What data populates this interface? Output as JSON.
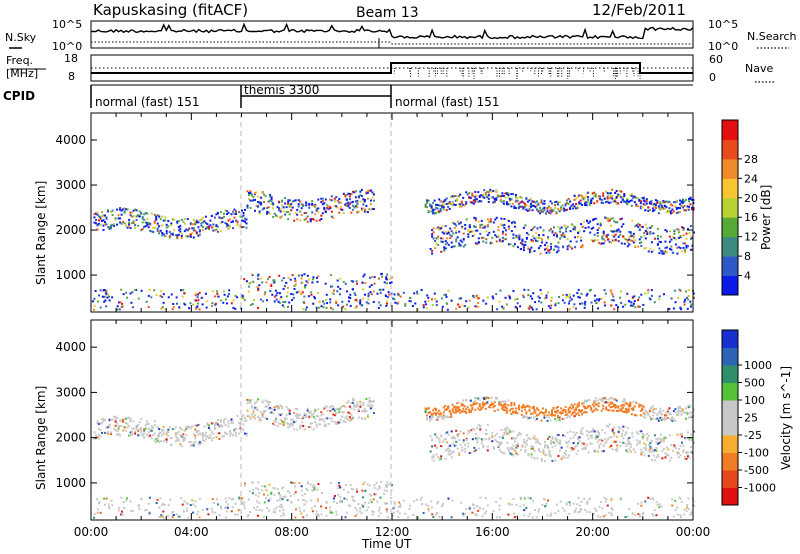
{
  "header": {
    "station": "Kapuskasing (fitACF)",
    "beam": "Beam 13",
    "date": "12/Feb/2011"
  },
  "noise_panel": {
    "left_label": "N.Sky",
    "right_label": "N.Search",
    "left_ticks": [
      "10^5",
      "10^0"
    ],
    "right_ticks": [
      "10^5",
      "10^0"
    ]
  },
  "freq_panel": {
    "left_label_line1": "Freq.",
    "left_label_line2": "[MHz]",
    "left_ticks": [
      "18",
      "8"
    ],
    "right_label": "Nave",
    "right_ticks": [
      "60",
      "0"
    ]
  },
  "cpid": {
    "label": "CPID",
    "segments": [
      {
        "name": "normal (fast) 151",
        "start_hour": 0,
        "end_hour": 6
      },
      {
        "name": "themis 3300",
        "start_hour": 6,
        "end_hour": 12
      },
      {
        "name": "normal (fast) 151",
        "start_hour": 12,
        "end_hour": 24
      }
    ]
  },
  "chart_data": [
    {
      "type": "heatmap",
      "name": "power",
      "ylabel": "Slant Range [km]",
      "yticks": [
        1000,
        2000,
        3000,
        4000
      ],
      "ylim": [
        180,
        4600
      ],
      "xlim_hours": [
        0,
        24
      ],
      "colorbar": {
        "label": "Power [dB]",
        "ticks": [
          "4",
          "8",
          "12",
          "16",
          "20",
          "24",
          "28"
        ],
        "colors": [
          "#0a1ae8",
          "#2f58c8",
          "#3d8a80",
          "#56a838",
          "#b8d233",
          "#f7c531",
          "#f08a2a",
          "#e84a1e",
          "#e3100f"
        ]
      },
      "scatter_bands": [
        {
          "start_hour": 0.1,
          "end_hour": 6.2,
          "range_from": 1950,
          "range_to": 2400
        },
        {
          "start_hour": 6.2,
          "end_hour": 11.3,
          "range_from": 2300,
          "range_to": 2800
        },
        {
          "start_hour": 13.3,
          "end_hour": 24,
          "range_from": 2500,
          "range_to": 2800
        },
        {
          "start_hour": 13.5,
          "end_hour": 24,
          "range_from": 1600,
          "range_to": 2200
        }
      ]
    },
    {
      "type": "heatmap",
      "name": "velocity",
      "ylabel": "Slant Range [km]",
      "yticks": [
        1000,
        2000,
        3000,
        4000
      ],
      "ylim": [
        180,
        4600
      ],
      "xlim_hours": [
        0,
        24
      ],
      "colorbar": {
        "label": "Velocity [m s^-1]",
        "ticks": [
          "1000",
          "500",
          "100",
          "25",
          "-25",
          "-100",
          "-500",
          "-1000"
        ],
        "colors": [
          "#1a2fcf",
          "#2d64b5",
          "#2f8f6b",
          "#55c23a",
          "#c8c8c8",
          "#c8c8c8",
          "#f7ad2f",
          "#f07c24",
          "#e7481b",
          "#e0100f"
        ]
      }
    }
  ],
  "xaxis": {
    "label": "Time UT",
    "ticks": [
      "00:00",
      "04:00",
      "08:00",
      "12:00",
      "16:00",
      "20:00",
      "00:00"
    ]
  }
}
